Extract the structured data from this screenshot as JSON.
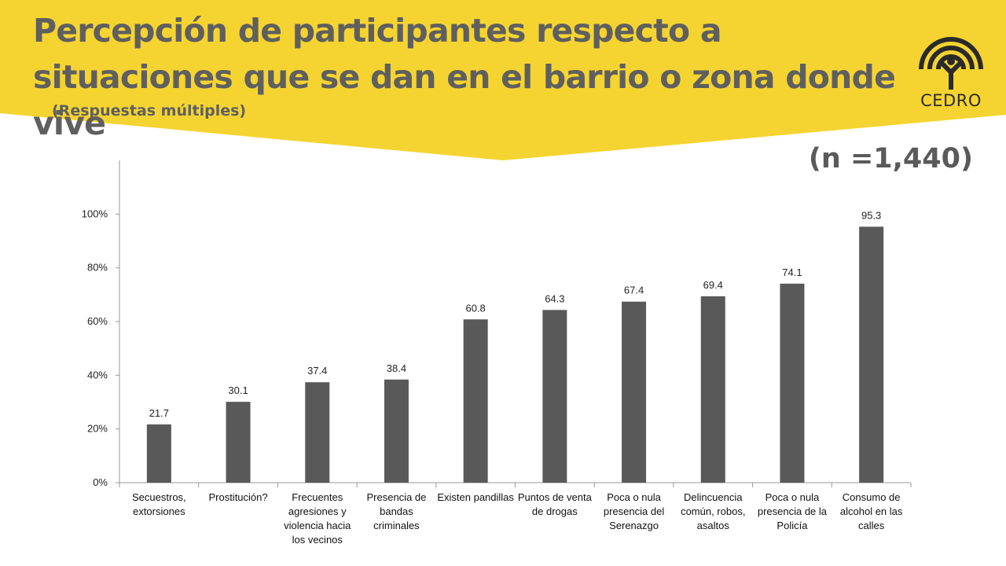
{
  "header": {
    "title": "Percepción de participantes respecto a situaciones que se dan en el barrio o zona donde vive",
    "subtitle": "(Respuestas múltiples)",
    "sample_size": "(n =1,440)",
    "logo_text": "CEDRO",
    "banner_color": "#f5d431"
  },
  "chart_data": {
    "type": "bar",
    "categories": [
      "Secuestros, extorsiones",
      "Prostitución?",
      "Frecuentes agresiones y violencia hacia los vecinos",
      "Presencia de bandas criminales",
      "Existen pandillas",
      "Puntos de venta de drogas",
      "Poca o nula presencia del Serenazgo",
      "Delincuencia común, robos, asaltos",
      "Poca o nula presencia de la Policía",
      "Consumo de alcohol en las calles"
    ],
    "values": [
      21.7,
      30.1,
      37.4,
      38.4,
      60.8,
      64.3,
      67.4,
      69.4,
      74.1,
      95.3
    ],
    "data_labels": [
      "21.7",
      "30.1",
      "37.4",
      "38.4",
      "60.8",
      "64.3",
      "67.4",
      "69.4",
      "74.1",
      "95.3"
    ],
    "yticks": [
      "0%",
      "20%",
      "40%",
      "60%",
      "80%",
      "100%"
    ],
    "ylim": [
      0,
      120
    ],
    "bar_color": "#595959",
    "grid": false,
    "legend": "none"
  }
}
